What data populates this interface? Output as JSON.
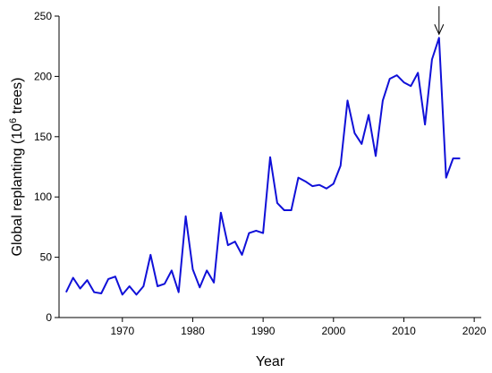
{
  "chart_data": {
    "type": "line",
    "xlabel": "Year",
    "ylabel": {
      "prefix": "Global replanting (10",
      "superscript": "6",
      "suffix": " trees)"
    },
    "xlim": [
      1961,
      2021
    ],
    "ylim": [
      0,
      250
    ],
    "xticks": [
      1970,
      1980,
      1990,
      2000,
      2010,
      2020
    ],
    "yticks": [
      0,
      50,
      100,
      150,
      200,
      250
    ],
    "grid": false,
    "colors": {
      "line": "#1010d8",
      "axis": "#000000",
      "arrow": "#000000"
    },
    "annotation": {
      "type": "arrow",
      "x": 2015,
      "y": 232
    },
    "series": [
      {
        "x": [
          1962,
          1963,
          1964,
          1965,
          1966,
          1967,
          1968,
          1969,
          1970,
          1971,
          1972,
          1973,
          1974,
          1975,
          1976,
          1977,
          1978,
          1979,
          1980,
          1981,
          1982,
          1983,
          1984,
          1985,
          1986,
          1987,
          1988,
          1989,
          1990,
          1991,
          1992,
          1993,
          1994,
          1995,
          1996,
          1997,
          1998,
          1999,
          2000,
          2001,
          2002,
          2003,
          2004,
          2005,
          2006,
          2007,
          2008,
          2009,
          2010,
          2011,
          2012,
          2013,
          2014,
          2015,
          2016,
          2017,
          2018
        ],
        "y": [
          21,
          33,
          24,
          31,
          21,
          20,
          32,
          34,
          19,
          26,
          19,
          26,
          52,
          26,
          28,
          39,
          21,
          84,
          40,
          25,
          39,
          29,
          87,
          60,
          63,
          52,
          70,
          72,
          70,
          133,
          95,
          89,
          89,
          116,
          113,
          109,
          110,
          107,
          111,
          126,
          180,
          153,
          144,
          168,
          134,
          180,
          198,
          201,
          195,
          192,
          203,
          160,
          214,
          232,
          116,
          132,
          132
        ]
      }
    ]
  }
}
